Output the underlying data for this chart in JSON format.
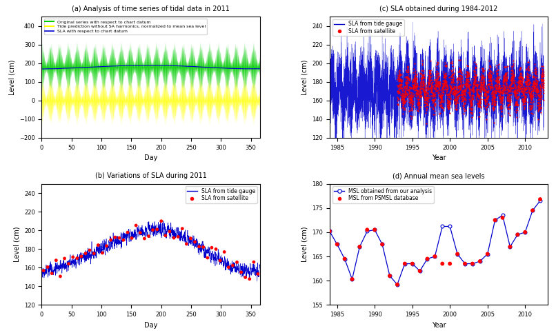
{
  "title_a": "(a) Analysis of time series of tidal data in 2011",
  "title_b": "(b) Variations of SLA during 2011",
  "title_c": "(c) SLA obtained during 1984-2012",
  "title_d": "(d) Annual mean sea levels",
  "xlabel_day": "Day",
  "xlabel_year": "Year",
  "ylabel": "Level (cm)",
  "color_green": "#00cc00",
  "color_yellow": "#ffff00",
  "color_blue": "#0000cc",
  "color_red": "#ff0000",
  "legend_a1": "Original series with respect to chart datum",
  "legend_a2": "Tide prediction without SA harmonics, normalized to mean sea level",
  "legend_a3": "SLA with respect to chart datum",
  "legend_b1": "SLA from tide gauge",
  "legend_b2": "SLA from satellite",
  "legend_c1": "SLA from tide gauge",
  "legend_c2": "SLA from satellite",
  "legend_d1": "MSL obtained from our analysis",
  "legend_d2": "MSL from PSMSL database",
  "msl_values": [
    170.2,
    167.5,
    164.5,
    160.3,
    167.0,
    170.2,
    170.5,
    167.5,
    161.0,
    159.2,
    163.5,
    163.5,
    162.0,
    164.5,
    165.0,
    171.2,
    171.2,
    165.5,
    163.5,
    163.5,
    164.0,
    165.5,
    172.5,
    173.5,
    167.0,
    169.5,
    170.0,
    174.5,
    176.5
  ],
  "psmsl_values": [
    170.2,
    167.5,
    164.5,
    160.3,
    167.0,
    170.5,
    170.5,
    167.5,
    161.0,
    159.2,
    163.5,
    163.5,
    162.0,
    164.5,
    165.0,
    163.5,
    163.5,
    165.5,
    163.5,
    163.5,
    164.0,
    165.5,
    172.5,
    173.0,
    167.0,
    169.5,
    170.0,
    174.5,
    176.8
  ],
  "seed": 42
}
